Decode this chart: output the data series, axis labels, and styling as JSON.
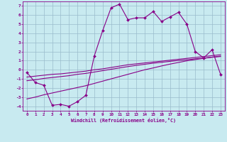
{
  "xlabel": "Windchill (Refroidissement éolien,°C)",
  "bg_color": "#c8eaf0",
  "grid_color": "#99bbcc",
  "line_color": "#880088",
  "x_values": [
    0,
    1,
    2,
    3,
    4,
    5,
    6,
    7,
    8,
    9,
    10,
    11,
    12,
    13,
    14,
    15,
    16,
    17,
    18,
    19,
    20,
    21,
    22,
    23
  ],
  "main_line": [
    -0.3,
    -1.4,
    -1.7,
    -3.9,
    -3.8,
    -4.0,
    -3.5,
    -2.8,
    1.5,
    4.3,
    6.8,
    7.2,
    5.5,
    5.7,
    5.7,
    6.4,
    5.3,
    5.8,
    6.3,
    5.0,
    2.0,
    1.3,
    2.2,
    -0.5
  ],
  "reg_line1": [
    -0.8,
    -0.7,
    -0.6,
    -0.5,
    -0.45,
    -0.35,
    -0.25,
    -0.15,
    0.0,
    0.1,
    0.25,
    0.4,
    0.55,
    0.65,
    0.75,
    0.85,
    0.95,
    1.05,
    1.15,
    1.25,
    1.35,
    1.45,
    1.55,
    1.65
  ],
  "reg_line2": [
    -1.2,
    -1.1,
    -0.95,
    -0.85,
    -0.75,
    -0.65,
    -0.5,
    -0.4,
    -0.25,
    -0.1,
    0.05,
    0.2,
    0.35,
    0.48,
    0.6,
    0.72,
    0.82,
    0.92,
    1.02,
    1.1,
    1.2,
    1.28,
    1.38,
    1.45
  ],
  "reg_line3": [
    -3.2,
    -3.0,
    -2.75,
    -2.55,
    -2.35,
    -2.15,
    -1.95,
    -1.75,
    -1.5,
    -1.25,
    -1.0,
    -0.75,
    -0.5,
    -0.25,
    0.0,
    0.2,
    0.42,
    0.62,
    0.8,
    0.98,
    1.12,
    1.25,
    1.38,
    1.5
  ],
  "ylim": [
    -4.5,
    7.5
  ],
  "xlim": [
    -0.5,
    23.5
  ],
  "yticks": [
    -4,
    -3,
    -2,
    -1,
    0,
    1,
    2,
    3,
    4,
    5,
    6,
    7
  ],
  "xticks": [
    0,
    1,
    2,
    3,
    4,
    5,
    6,
    7,
    8,
    9,
    10,
    11,
    12,
    13,
    14,
    15,
    16,
    17,
    18,
    19,
    20,
    21,
    22,
    23
  ]
}
